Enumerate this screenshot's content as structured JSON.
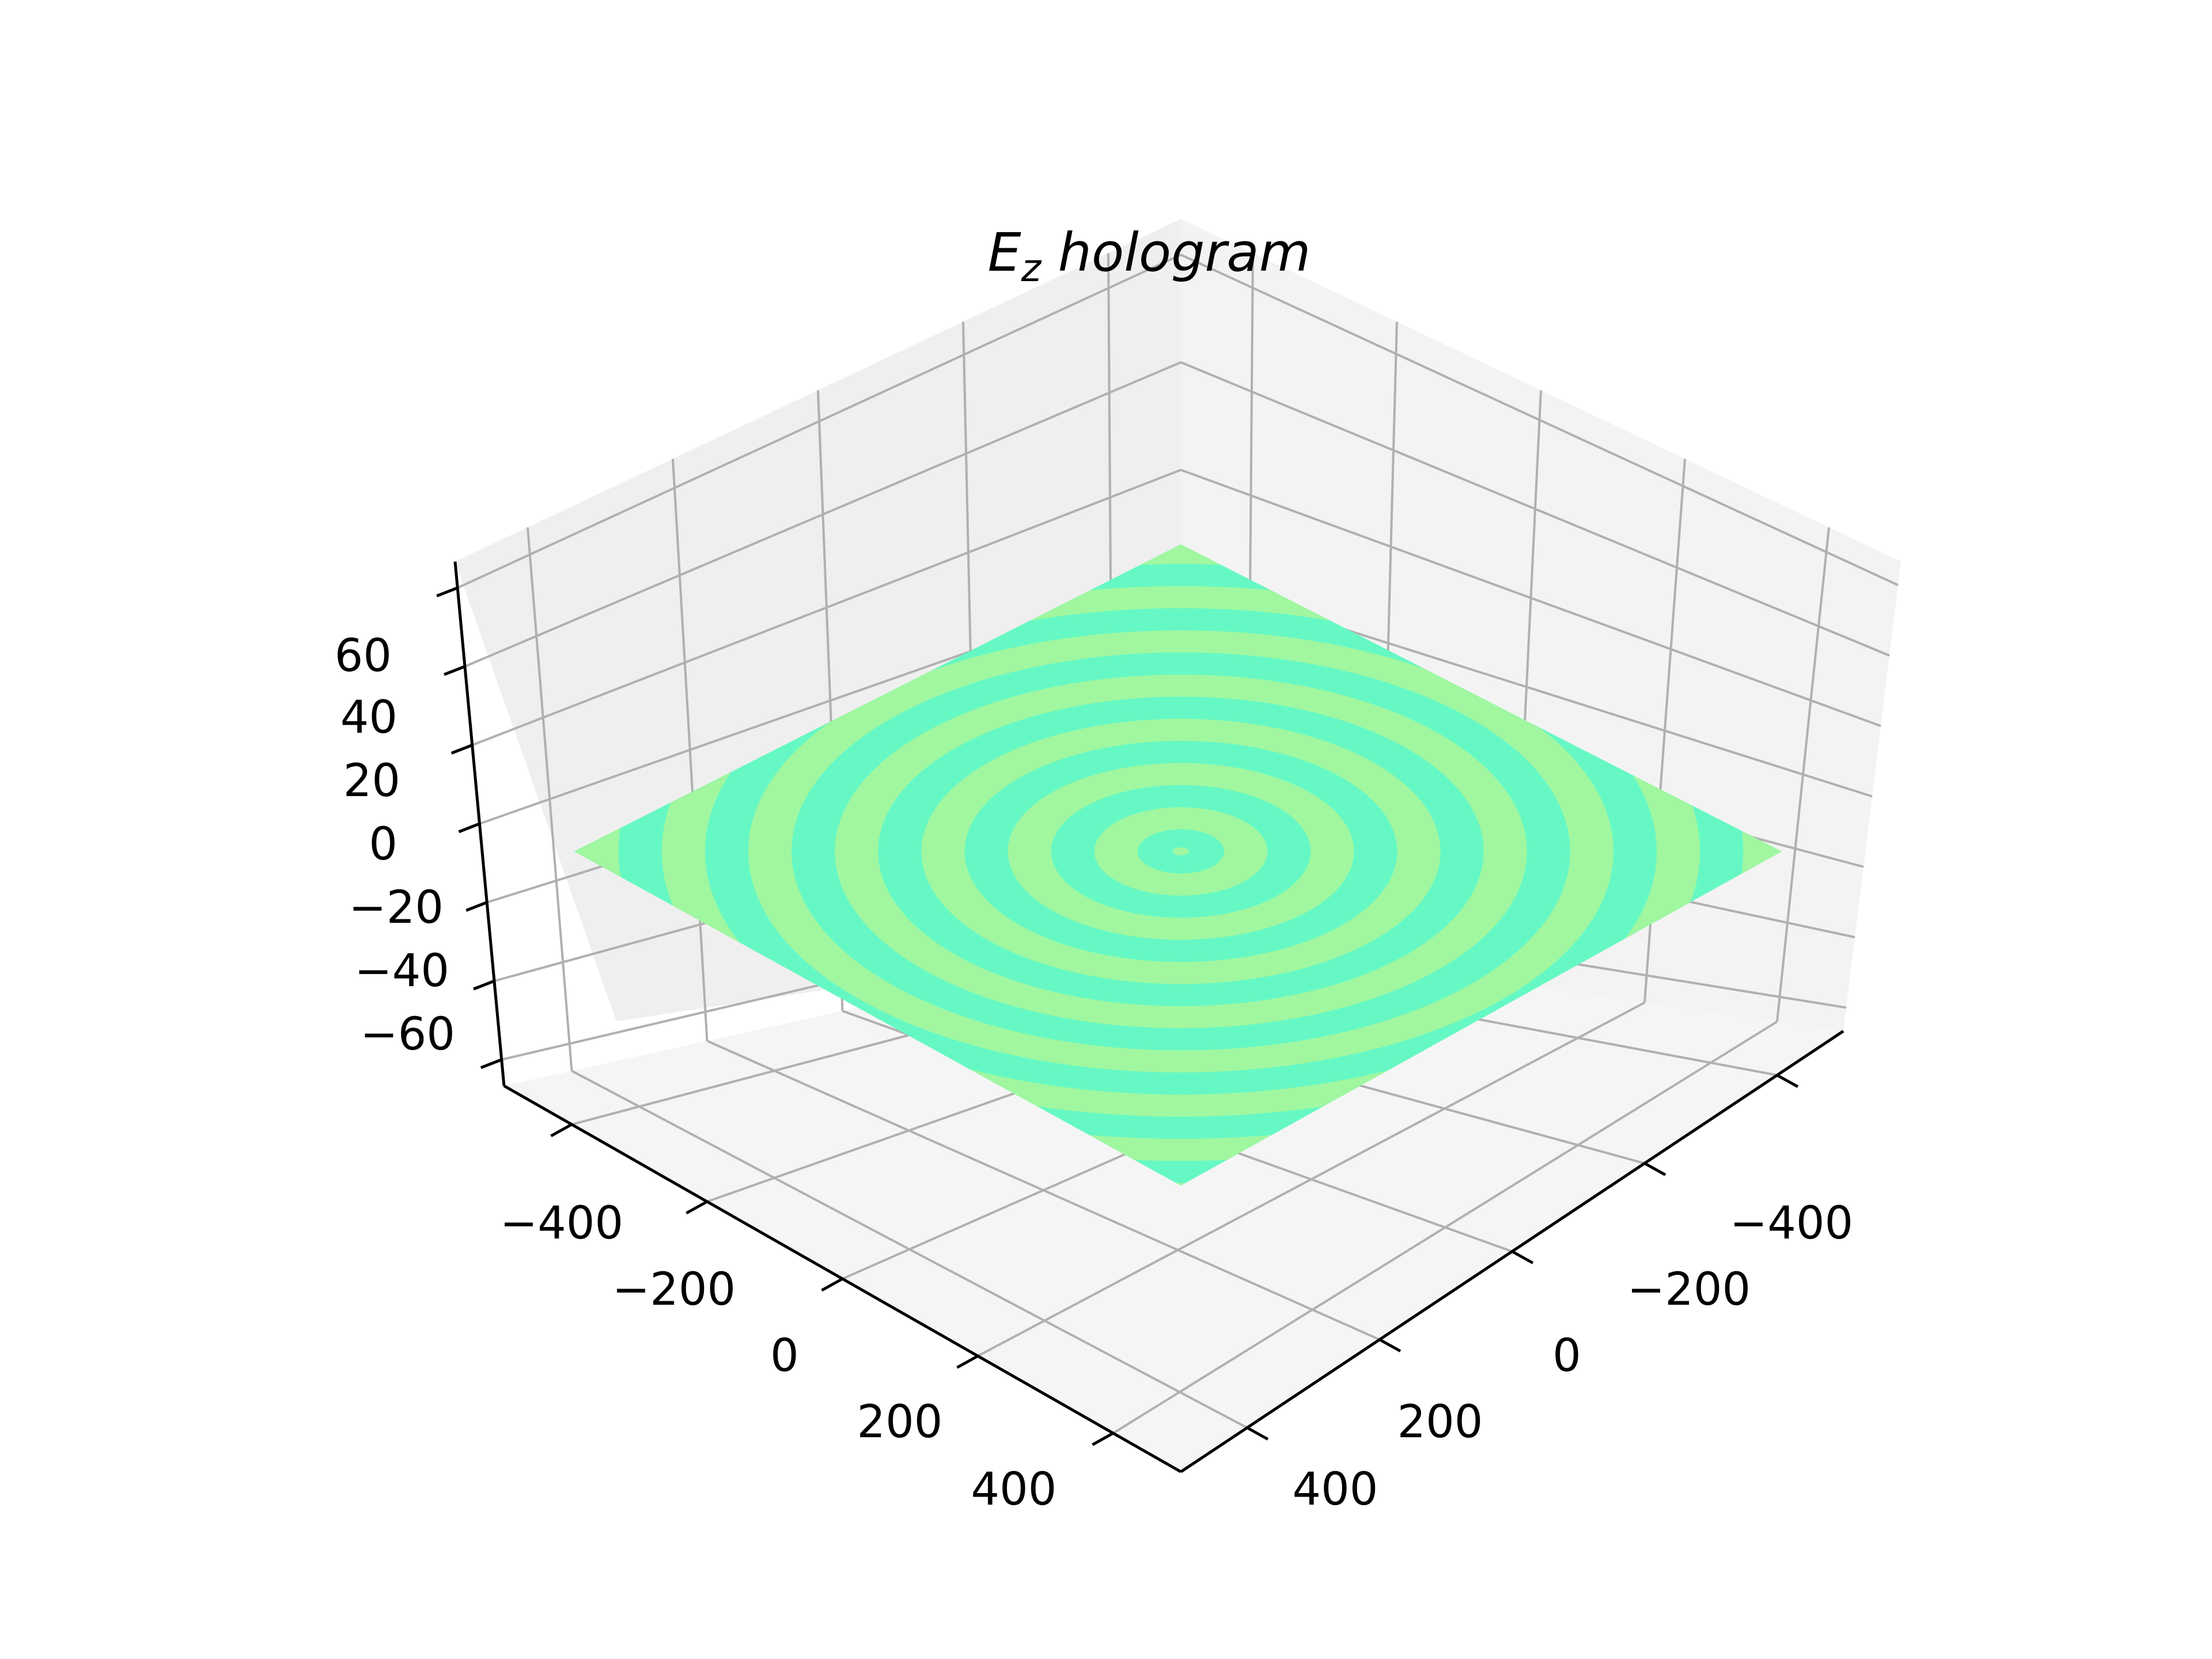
{
  "chart_data": {
    "type": "surface3d",
    "title_main": "E",
    "title_sub": "z",
    "title_rest": " hologram",
    "x_ticks": [
      "−400",
      "−200",
      "0",
      "200",
      "400"
    ],
    "y_ticks": [
      "−400",
      "−200",
      "0",
      "200",
      "400"
    ],
    "z_ticks": [
      "−60",
      "−40",
      "−20",
      "0",
      "20",
      "40",
      "60"
    ],
    "xlim": [
      -500,
      500
    ],
    "ylim": [
      -500,
      500
    ],
    "zlim": [
      -75,
      75
    ],
    "grid": true,
    "surface": {
      "z_value": 0,
      "pattern": "concentric rings",
      "ring_count": 10,
      "colors": [
        "#a0f7a0",
        "#66f8c4"
      ]
    },
    "colors": {
      "pane": "#f2f2f2",
      "grid": "#b0b0b0",
      "axis_line": "#000000"
    }
  }
}
